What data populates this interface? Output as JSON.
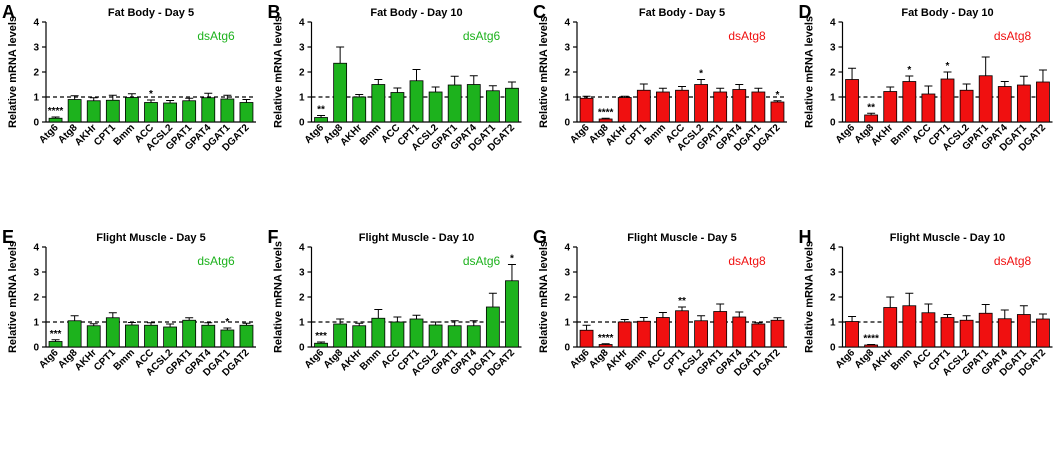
{
  "colors": {
    "green": "#1DB21D",
    "red": "#F01010",
    "axis": "#000000"
  },
  "genes": [
    "Atg6",
    "Atg8",
    "AKHr",
    "Bmm",
    "ACC",
    "CPT1",
    "ACSL2",
    "GPAT1",
    "GPAT4",
    "DGAT1",
    "DGAT2"
  ],
  "chart_data": [
    {
      "panel": "A",
      "title": "Fat Body - Day 5",
      "legend": "dsAtg6",
      "color": "green",
      "type": "bar",
      "ylabel": "Relative mRNA levels",
      "ylim": [
        0,
        4
      ],
      "yticks": [
        0,
        1,
        2,
        3,
        4
      ],
      "reference_line": 1,
      "categories": [
        "Atg6",
        "Atg8",
        "AKHr",
        "CPT1",
        "Bmm",
        "ACC",
        "ACSL2",
        "GPAT1",
        "GPAT4",
        "DGAT1",
        "DGAT2"
      ],
      "values": [
        0.15,
        0.9,
        0.85,
        0.87,
        0.98,
        0.78,
        0.76,
        0.85,
        0.97,
        0.92,
        0.78
      ],
      "errors": [
        0.05,
        0.15,
        0.12,
        0.2,
        0.15,
        0.1,
        0.1,
        0.1,
        0.18,
        0.15,
        0.12
      ],
      "significance": [
        "****",
        "",
        "",
        "",
        "",
        "*",
        "",
        "",
        "",
        "",
        ""
      ]
    },
    {
      "panel": "B",
      "title": "Fat Body - Day 10",
      "legend": "dsAtg6",
      "color": "green",
      "type": "bar",
      "ylabel": "Relative mRNA levels",
      "ylim": [
        0,
        4
      ],
      "yticks": [
        0,
        1,
        2,
        3,
        4
      ],
      "reference_line": 1,
      "categories": [
        "Atg6",
        "Atg8",
        "AKHr",
        "Bmm",
        "ACC",
        "CPT1",
        "ACSL2",
        "GPAT1",
        "GPAT4",
        "DGAT1",
        "DGAT2"
      ],
      "values": [
        0.18,
        2.35,
        1.0,
        1.5,
        1.18,
        1.65,
        1.2,
        1.48,
        1.5,
        1.25,
        1.35
      ],
      "errors": [
        0.08,
        0.65,
        0.1,
        0.2,
        0.18,
        0.45,
        0.2,
        0.35,
        0.35,
        0.2,
        0.25
      ],
      "significance": [
        "**",
        "",
        "",
        "",
        "",
        "",
        "",
        "",
        "",
        "",
        ""
      ]
    },
    {
      "panel": "C",
      "title": "Fat Body - Day 5",
      "legend": "dsAtg8",
      "color": "red",
      "type": "bar",
      "ylabel": "Relative mRNA levels",
      "ylim": [
        0,
        4
      ],
      "yticks": [
        0,
        1,
        2,
        3,
        4
      ],
      "reference_line": 1,
      "categories": [
        "Atg6",
        "Atg8",
        "AKHr",
        "CPT1",
        "Bmm",
        "ACC",
        "ACSL2",
        "GPAT1",
        "GPAT4",
        "DGAT1",
        "DGAT2"
      ],
      "values": [
        0.95,
        0.12,
        0.98,
        1.27,
        1.2,
        1.27,
        1.5,
        1.2,
        1.3,
        1.2,
        0.8
      ],
      "errors": [
        0.08,
        0.03,
        0.05,
        0.25,
        0.15,
        0.15,
        0.2,
        0.15,
        0.2,
        0.15,
        0.05
      ],
      "significance": [
        "",
        "****",
        "",
        "",
        "",
        "",
        "*",
        "",
        "",
        "",
        "*"
      ]
    },
    {
      "panel": "D",
      "title": "Fat Body - Day 10",
      "legend": "dsAtg8",
      "color": "red",
      "type": "bar",
      "ylabel": "Relative mRNA levels",
      "ylim": [
        0,
        4
      ],
      "yticks": [
        0,
        1,
        2,
        3,
        4
      ],
      "reference_line": 1,
      "categories": [
        "Atg6",
        "Atg8",
        "AKHr",
        "Bmm",
        "ACC",
        "CPT1",
        "ACSL2",
        "GPAT1",
        "GPAT4",
        "DGAT1",
        "DGAT2"
      ],
      "values": [
        1.7,
        0.28,
        1.22,
        1.62,
        1.12,
        1.72,
        1.27,
        1.85,
        1.42,
        1.48,
        1.6
      ],
      "errors": [
        0.45,
        0.07,
        0.18,
        0.22,
        0.32,
        0.28,
        0.25,
        0.75,
        0.2,
        0.35,
        0.48
      ],
      "significance": [
        "",
        "**",
        "",
        "*",
        "",
        "*",
        "",
        "",
        "",
        "",
        ""
      ]
    },
    {
      "panel": "E",
      "title": "Flight Muscle - Day 5",
      "legend": "dsAtg6",
      "color": "green",
      "type": "bar",
      "ylabel": "Relative mRNA levels",
      "ylim": [
        0,
        4
      ],
      "yticks": [
        0,
        1,
        2,
        3,
        4
      ],
      "reference_line": 1,
      "categories": [
        "Atg6",
        "Atg8",
        "AKHr",
        "CPT1",
        "Bmm",
        "ACC",
        "ACSL2",
        "GPAT1",
        "GPAT4",
        "DGAT1",
        "DGAT2"
      ],
      "values": [
        0.22,
        1.05,
        0.85,
        1.17,
        0.88,
        0.87,
        0.8,
        1.07,
        0.87,
        0.68,
        0.87
      ],
      "errors": [
        0.07,
        0.2,
        0.08,
        0.2,
        0.1,
        0.1,
        0.12,
        0.1,
        0.1,
        0.08,
        0.08
      ],
      "significance": [
        "***",
        "",
        "",
        "",
        "",
        "",
        "",
        "",
        "",
        "*",
        ""
      ]
    },
    {
      "panel": "F",
      "title": "Flight Muscle - Day 10",
      "legend": "dsAtg6",
      "color": "green",
      "type": "bar",
      "ylabel": "Relative mRNA levels",
      "ylim": [
        0,
        4
      ],
      "yticks": [
        0,
        1,
        2,
        3,
        4
      ],
      "reference_line": 1,
      "categories": [
        "Atg6",
        "Atg8",
        "AKHr",
        "Bmm",
        "ACC",
        "CPT1",
        "ACSL2",
        "GPAT1",
        "GPAT4",
        "DGAT1",
        "DGAT2"
      ],
      "values": [
        0.15,
        0.92,
        0.85,
        1.15,
        1.0,
        1.12,
        0.88,
        0.85,
        0.85,
        1.6,
        2.65
      ],
      "errors": [
        0.05,
        0.2,
        0.1,
        0.35,
        0.2,
        0.15,
        0.12,
        0.2,
        0.2,
        0.55,
        0.65
      ],
      "significance": [
        "***",
        "",
        "",
        "",
        "",
        "",
        "",
        "",
        "",
        "",
        "*"
      ]
    },
    {
      "panel": "G",
      "title": "Flight Muscle - Day 5",
      "legend": "dsAtg8",
      "color": "red",
      "type": "bar",
      "ylabel": "Relative mRNA levels",
      "ylim": [
        0,
        4
      ],
      "yticks": [
        0,
        1,
        2,
        3,
        4
      ],
      "reference_line": 1,
      "categories": [
        "Atg6",
        "Atg8",
        "AKHr",
        "Bmm",
        "ACC",
        "CPT1",
        "ACSL2",
        "GPAT1",
        "GPAT4",
        "DGAT1",
        "DGAT2"
      ],
      "values": [
        0.67,
        0.1,
        1.0,
        1.03,
        1.18,
        1.45,
        1.05,
        1.42,
        1.2,
        0.92,
        1.07
      ],
      "errors": [
        0.2,
        0.03,
        0.1,
        0.15,
        0.2,
        0.15,
        0.2,
        0.3,
        0.2,
        0.05,
        0.1
      ],
      "significance": [
        "",
        "****",
        "",
        "",
        "",
        "**",
        "",
        "",
        "",
        "",
        ""
      ]
    },
    {
      "panel": "H",
      "title": "Flight Muscle - Day 10",
      "legend": "dsAtg8",
      "color": "red",
      "type": "bar",
      "ylabel": "Relative mRNA levels",
      "ylim": [
        0,
        4
      ],
      "yticks": [
        0,
        1,
        2,
        3,
        4
      ],
      "reference_line": 1,
      "categories": [
        "Atg6",
        "Atg8",
        "AKHr",
        "Bmm",
        "ACC",
        "CPT1",
        "ACSL2",
        "GPAT1",
        "GPAT4",
        "DGAT1",
        "DGAT2"
      ],
      "values": [
        1.02,
        0.08,
        1.58,
        1.65,
        1.37,
        1.18,
        1.07,
        1.35,
        1.13,
        1.3,
        1.12
      ],
      "errors": [
        0.2,
        0.02,
        0.42,
        0.5,
        0.35,
        0.12,
        0.18,
        0.35,
        0.35,
        0.35,
        0.2
      ],
      "significance": [
        "",
        "****",
        "",
        "",
        "",
        "",
        "",
        "",
        "",
        "",
        ""
      ]
    }
  ]
}
